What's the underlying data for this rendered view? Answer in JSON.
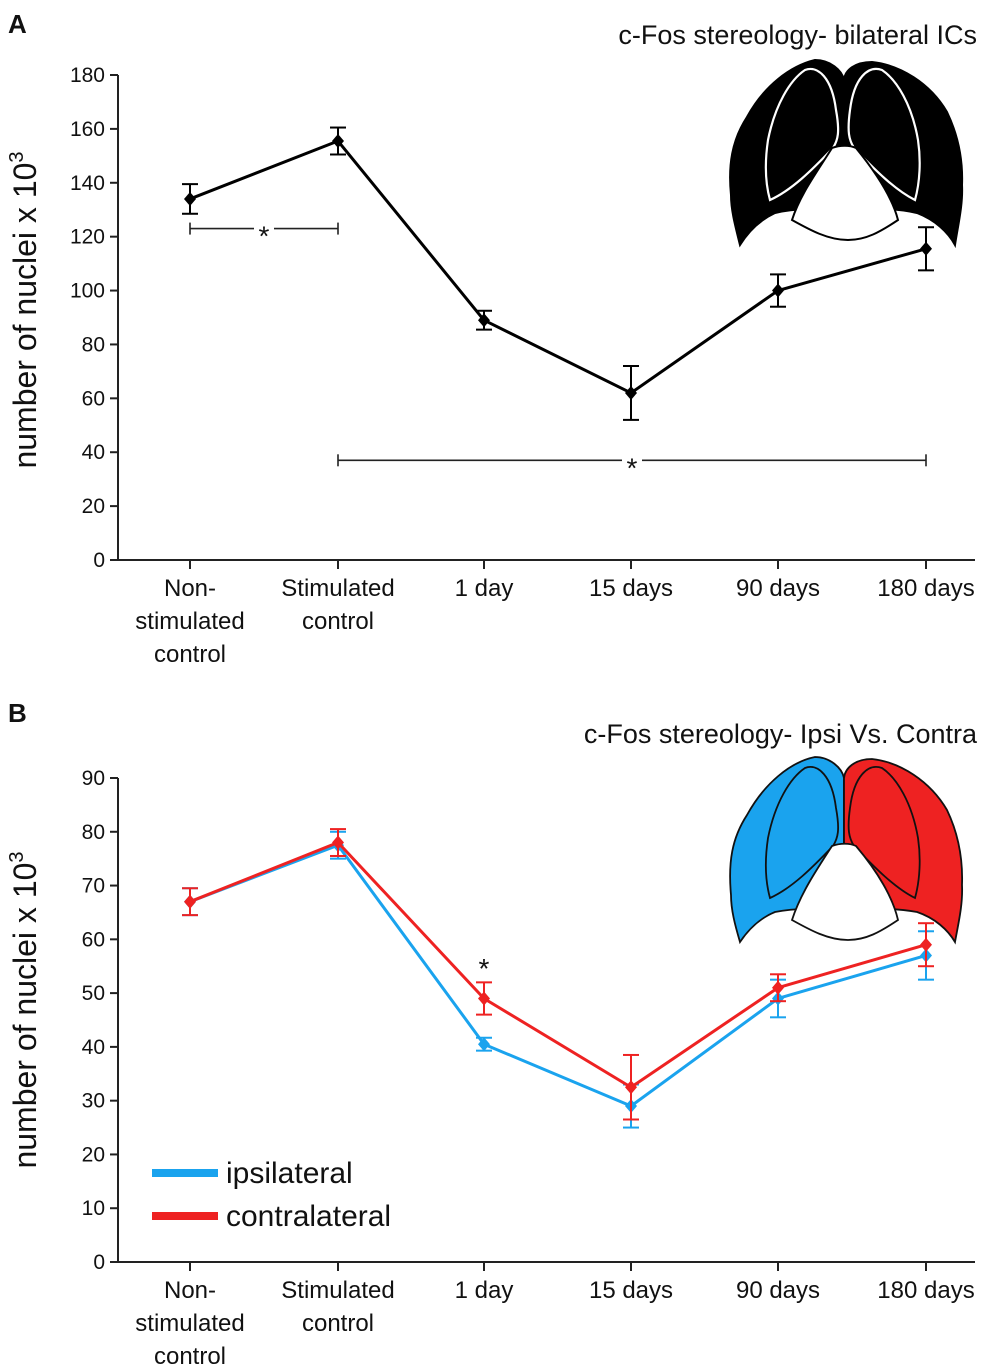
{
  "chart_data": [
    {
      "panel_label": "A",
      "type": "line",
      "title": "c-Fos stereology- bilateral ICs",
      "ylabel": "number of nuclei  x 10",
      "ylabel_exponent": "3",
      "categories": [
        [
          "Non-",
          "stimulated",
          "control"
        ],
        [
          "Stimulated",
          "control"
        ],
        [
          "1 day"
        ],
        [
          "15 days"
        ],
        [
          "90 days"
        ],
        [
          "180 days"
        ]
      ],
      "ylim": [
        0,
        180
      ],
      "yticks": [
        "0",
        "20",
        "40",
        "60",
        "80",
        "100",
        "120",
        "140",
        "160",
        "180"
      ],
      "series": [
        {
          "name": "bilateral",
          "color": "#000000",
          "values": [
            134,
            155.5,
            89,
            62,
            100,
            115.5
          ],
          "errors": [
            5.5,
            5,
            3.5,
            10,
            6,
            8
          ]
        }
      ],
      "significance": [
        {
          "from": 0,
          "to": 1,
          "y": 123,
          "label": "*"
        },
        {
          "from": 1,
          "to": 5,
          "y": 37,
          "label": "*"
        }
      ],
      "inset": {
        "name": "bilateral-inferior-colliculi-diagram",
        "left_color": "#000000",
        "right_color": "#000000"
      }
    },
    {
      "panel_label": "B",
      "type": "line",
      "title": "c-Fos stereology- Ipsi Vs. Contra",
      "ylabel": "number of nuclei  x 10",
      "ylabel_exponent": "3",
      "categories": [
        [
          "Non-",
          "stimulated",
          "control"
        ],
        [
          "Stimulated",
          "control"
        ],
        [
          "1 day"
        ],
        [
          "15 days"
        ],
        [
          "90 days"
        ],
        [
          "180 days"
        ]
      ],
      "ylim": [
        0,
        90
      ],
      "yticks": [
        "0",
        "10",
        "20",
        "30",
        "40",
        "50",
        "60",
        "70",
        "80",
        "90"
      ],
      "series": [
        {
          "name": "ipsilateral",
          "color": "#1aa3ee",
          "values": [
            67,
            77.5,
            40.5,
            29,
            49,
            57
          ],
          "errors": [
            2.5,
            2.5,
            1.2,
            4,
            3.5,
            4.5
          ]
        },
        {
          "name": "contralateral",
          "color": "#ee2222",
          "values": [
            67,
            78,
            49,
            32.5,
            51,
            59
          ],
          "errors": [
            2.5,
            2.5,
            3,
            6,
            2.5,
            4
          ]
        }
      ],
      "significance": [
        {
          "at": 2,
          "y": 55,
          "label": "*"
        }
      ],
      "legend": {
        "position": "bottom-left",
        "entries": [
          "ipsilateral",
          "contralateral"
        ]
      },
      "inset": {
        "name": "ipsi-contra-inferior-colliculi-diagram",
        "left_color": "#1aa3ee",
        "right_color": "#ee2222"
      }
    }
  ]
}
